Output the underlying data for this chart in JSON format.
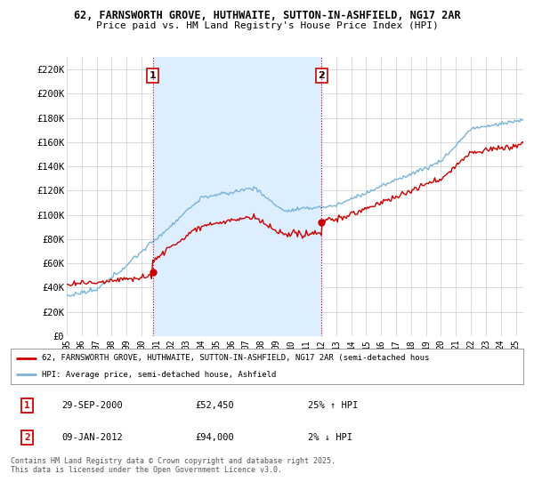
{
  "title1": "62, FARNSWORTH GROVE, HUTHWAITE, SUTTON-IN-ASHFIELD, NG17 2AR",
  "title2": "Price paid vs. HM Land Registry's House Price Index (HPI)",
  "ylim": [
    0,
    230000
  ],
  "yticks": [
    0,
    20000,
    40000,
    60000,
    80000,
    100000,
    120000,
    140000,
    160000,
    180000,
    200000,
    220000
  ],
  "ytick_labels": [
    "£0",
    "£20K",
    "£40K",
    "£60K",
    "£80K",
    "£100K",
    "£120K",
    "£140K",
    "£160K",
    "£180K",
    "£200K",
    "£220K"
  ],
  "xlim_start": 1995.0,
  "xlim_end": 2025.5,
  "xtick_years": [
    1995,
    1996,
    1997,
    1998,
    1999,
    2000,
    2001,
    2002,
    2003,
    2004,
    2005,
    2006,
    2007,
    2008,
    2009,
    2010,
    2011,
    2012,
    2013,
    2014,
    2015,
    2016,
    2017,
    2018,
    2019,
    2020,
    2021,
    2022,
    2023,
    2024,
    2025
  ],
  "hpi_color": "#7ab4d8",
  "price_color": "#cc0000",
  "shade_color": "#ddeeff",
  "vline1_x": 2000.75,
  "vline2_x": 2012.03,
  "vline_color": "#cc0000",
  "marker1_x": 2000.75,
  "marker1_y": 52450,
  "marker2_x": 2012.03,
  "marker2_y": 94000,
  "label1_num": "1",
  "label2_num": "2",
  "legend_line1": "62, FARNSWORTH GROVE, HUTHWAITE, SUTTON-IN-ASHFIELD, NG17 2AR (semi-detached hous",
  "legend_line2": "HPI: Average price, semi-detached house, Ashfield",
  "table_row1": [
    "1",
    "29-SEP-2000",
    "£52,450",
    "25% ↑ HPI"
  ],
  "table_row2": [
    "2",
    "09-JAN-2012",
    "£94,000",
    "2% ↓ HPI"
  ],
  "footnote": "Contains HM Land Registry data © Crown copyright and database right 2025.\nThis data is licensed under the Open Government Licence v3.0.",
  "bg_color": "#ffffff",
  "grid_color": "#cccccc"
}
